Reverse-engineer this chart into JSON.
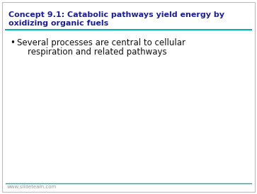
{
  "title_line1": "Concept 9.1: Catabolic pathways yield energy by",
  "title_line2": "oxidizing organic fuels",
  "title_color": "#1F1F8F",
  "title_fontsize": 8.0,
  "separator_color": "#00B0B0",
  "bullet_text_line1": "Several processes are central to cellular",
  "bullet_text_line2": "    respiration and related pathways",
  "bullet_fontsize": 8.5,
  "bullet_color": "#111111",
  "background_color": "#FFFFFF",
  "border_color": "#BBBBBB",
  "footer_text": "www.slideteam.com",
  "footer_color": "#999999",
  "footer_fontsize": 5.0
}
